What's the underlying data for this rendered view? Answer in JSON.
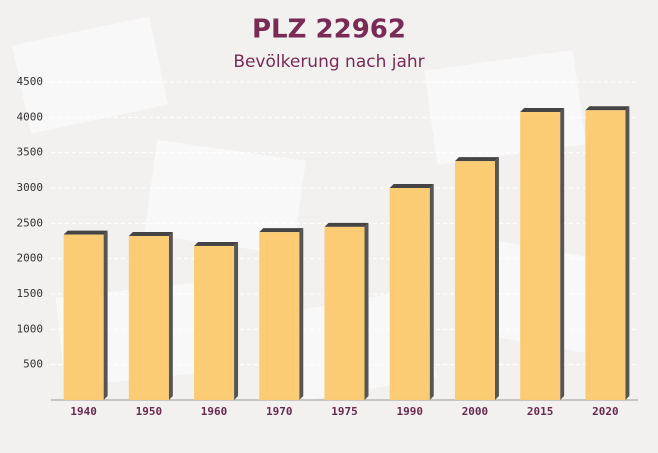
{
  "chart_data": {
    "type": "bar",
    "title": "PLZ 22962",
    "subtitle": "Bevölkerung nach jahr",
    "categories": [
      "1940",
      "1950",
      "1960",
      "1970",
      "1975",
      "1990",
      "2000",
      "2015",
      "2020"
    ],
    "values": [
      2340,
      2320,
      2180,
      2375,
      2450,
      3000,
      3380,
      4075,
      4100
    ],
    "color": "#fbc96d",
    "ylim": [
      0,
      4500
    ],
    "yticks": [
      500,
      1000,
      1500,
      2000,
      2500,
      3000,
      3500,
      4000,
      4500
    ],
    "grid": true
  }
}
